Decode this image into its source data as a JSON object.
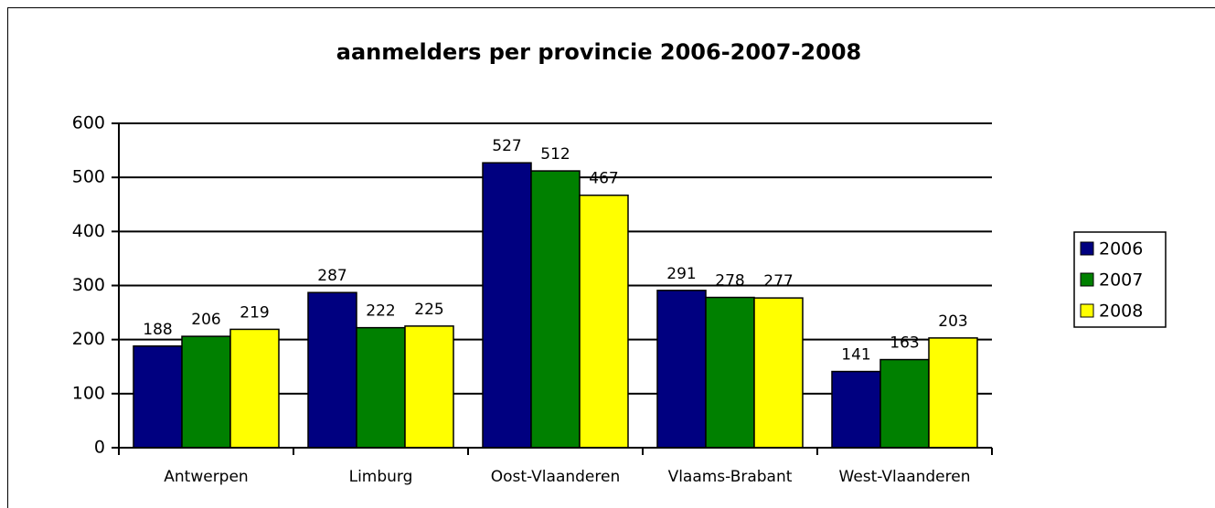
{
  "chart_data": {
    "type": "bar",
    "title": "aanmelders per provincie  2006-2007-2008",
    "categories": [
      "Antwerpen",
      "Limburg",
      "Oost-Vlaanderen",
      "Vlaams-Brabant",
      "West-Vlaanderen"
    ],
    "series": [
      {
        "name": "2006",
        "color": "#000080",
        "values": [
          188,
          287,
          527,
          291,
          141
        ]
      },
      {
        "name": "2007",
        "color": "#008000",
        "values": [
          206,
          222,
          512,
          278,
          163
        ]
      },
      {
        "name": "2008",
        "color": "#ffff00",
        "values": [
          219,
          225,
          467,
          277,
          203
        ]
      }
    ],
    "ylim": [
      0,
      600
    ],
    "yticks": [
      0,
      100,
      200,
      300,
      400,
      500,
      600
    ],
    "grid": true,
    "legend": "right"
  }
}
